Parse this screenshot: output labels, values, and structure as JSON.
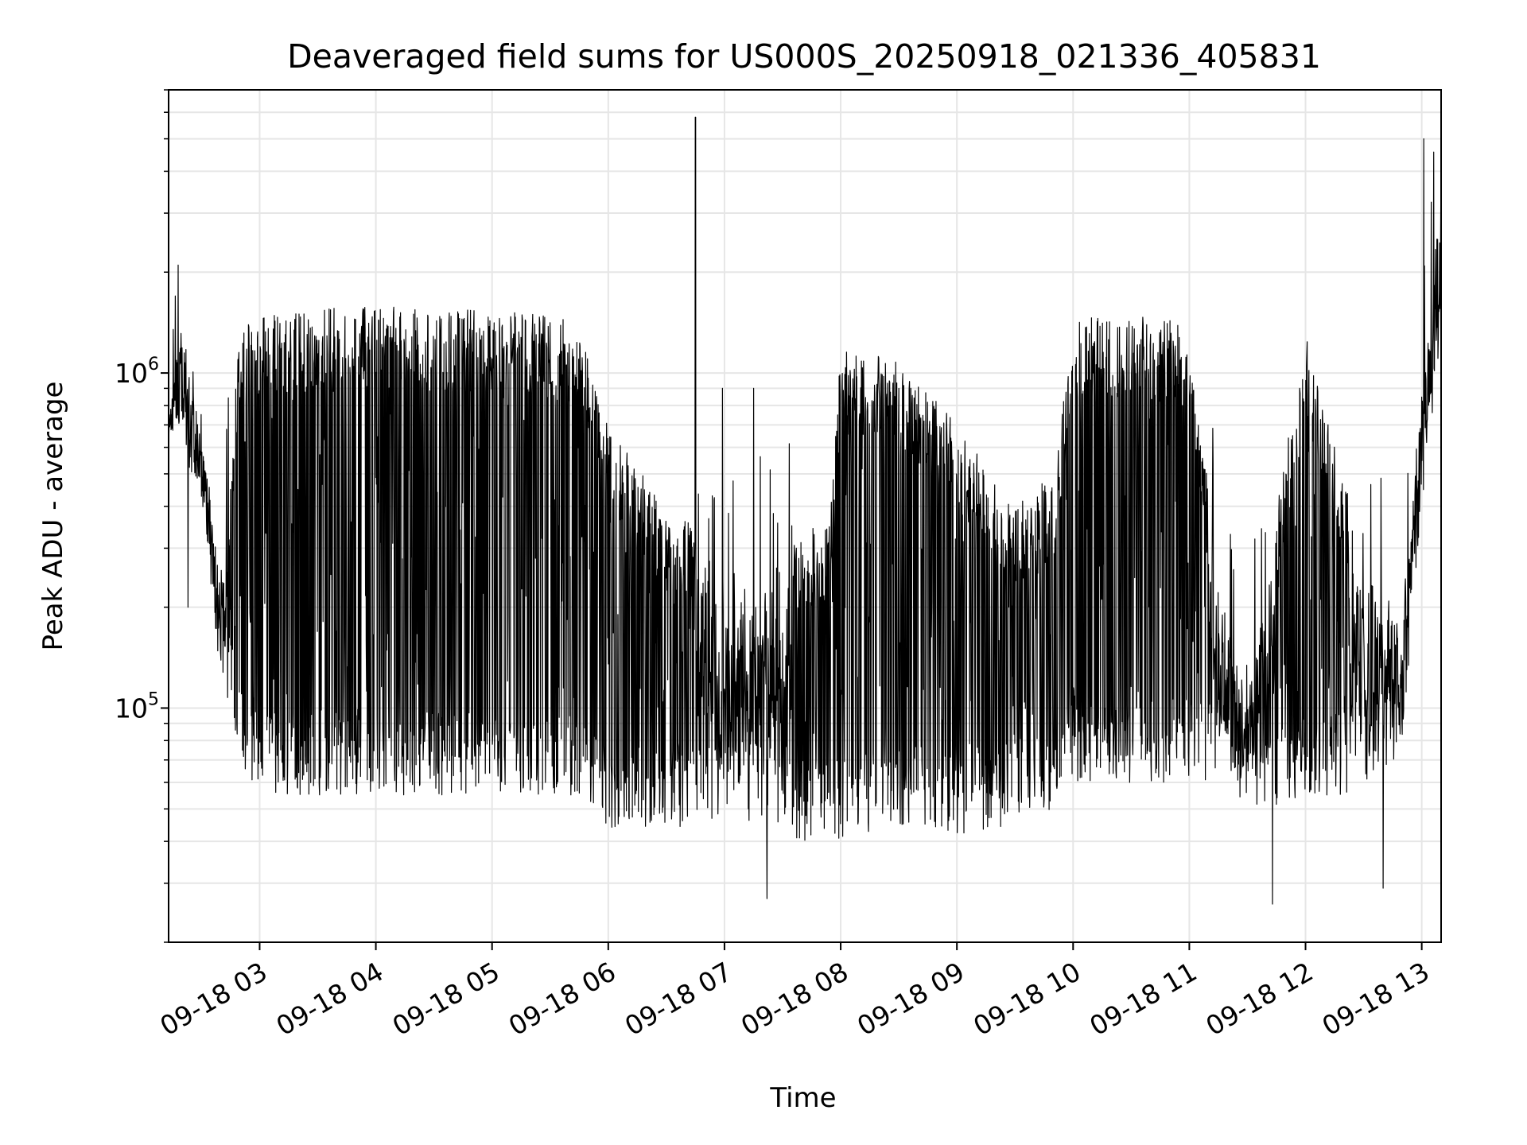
{
  "chart_data": {
    "type": "line",
    "title": "Deaveraged field sums for US000S_20250918_021336_405831",
    "xlabel": "Time",
    "ylabel": "Peak ADU - average",
    "y_scale": "log",
    "ylim": [
      20000,
      7000000
    ],
    "xlim": [
      "2025-09-18 02:13",
      "2025-09-18 13:10"
    ],
    "grid": true,
    "line_color": "#000000",
    "grid_color": "#e6e6e6",
    "x_ticks": [
      {
        "value": "2025-09-18 03:00",
        "label": "09-18 03"
      },
      {
        "value": "2025-09-18 04:00",
        "label": "09-18 04"
      },
      {
        "value": "2025-09-18 05:00",
        "label": "09-18 05"
      },
      {
        "value": "2025-09-18 06:00",
        "label": "09-18 06"
      },
      {
        "value": "2025-09-18 07:00",
        "label": "09-18 07"
      },
      {
        "value": "2025-09-18 08:00",
        "label": "09-18 08"
      },
      {
        "value": "2025-09-18 09:00",
        "label": "09-18 09"
      },
      {
        "value": "2025-09-18 10:00",
        "label": "09-18 10"
      },
      {
        "value": "2025-09-18 11:00",
        "label": "09-18 11"
      },
      {
        "value": "2025-09-18 12:00",
        "label": "09-18 12"
      },
      {
        "value": "2025-09-18 13:00",
        "label": "09-18 13"
      }
    ],
    "y_ticks": [
      {
        "value": 100000,
        "base": "10",
        "exp": "5"
      },
      {
        "value": 1000000,
        "base": "10",
        "exp": "6"
      }
    ],
    "envelope": [
      {
        "t": "2025-09-18 02:13",
        "low": 600000,
        "high": 800000
      },
      {
        "t": "2025-09-18 02:20",
        "low": 550000,
        "high": 1500000
      },
      {
        "t": "2025-09-18 02:30",
        "low": 400000,
        "high": 700000
      },
      {
        "t": "2025-09-18 02:40",
        "low": 120000,
        "high": 250000
      },
      {
        "t": "2025-09-18 02:50",
        "low": 70000,
        "high": 1400000
      },
      {
        "t": "2025-09-18 03:00",
        "low": 55000,
        "high": 1500000
      },
      {
        "t": "2025-09-18 03:30",
        "low": 55000,
        "high": 1550000
      },
      {
        "t": "2025-09-18 04:00",
        "low": 55000,
        "high": 1600000
      },
      {
        "t": "2025-09-18 04:30",
        "low": 55000,
        "high": 1550000
      },
      {
        "t": "2025-09-18 05:00",
        "low": 55000,
        "high": 1550000
      },
      {
        "t": "2025-09-18 05:30",
        "low": 55000,
        "high": 1500000
      },
      {
        "t": "2025-09-18 05:45",
        "low": 55000,
        "high": 1400000
      },
      {
        "t": "2025-09-18 06:00",
        "low": 42000,
        "high": 700000
      },
      {
        "t": "2025-09-18 06:30",
        "low": 45000,
        "high": 400000
      },
      {
        "t": "2025-09-18 07:00",
        "low": 42000,
        "high": 300000
      },
      {
        "t": "2025-09-18 07:30",
        "low": 40000,
        "high": 300000
      },
      {
        "t": "2025-09-18 07:55",
        "low": 40000,
        "high": 400000
      },
      {
        "t": "2025-09-18 08:00",
        "low": 40000,
        "high": 1200000
      },
      {
        "t": "2025-09-18 08:30",
        "low": 45000,
        "high": 1100000
      },
      {
        "t": "2025-09-18 09:00",
        "low": 42000,
        "high": 700000
      },
      {
        "t": "2025-09-18 09:30",
        "low": 45000,
        "high": 400000
      },
      {
        "t": "2025-09-18 09:50",
        "low": 50000,
        "high": 500000
      },
      {
        "t": "2025-09-18 10:00",
        "low": 60000,
        "high": 1450000
      },
      {
        "t": "2025-09-18 10:30",
        "low": 60000,
        "high": 1500000
      },
      {
        "t": "2025-09-18 11:00",
        "low": 60000,
        "high": 1400000
      },
      {
        "t": "2025-09-18 11:15",
        "low": 55000,
        "high": 250000
      },
      {
        "t": "2025-09-18 11:30",
        "low": 45000,
        "high": 120000
      },
      {
        "t": "2025-09-18 12:00",
        "low": 55000,
        "high": 1300000
      },
      {
        "t": "2025-09-18 12:30",
        "low": 55000,
        "high": 300000
      },
      {
        "t": "2025-09-18 12:50",
        "low": 70000,
        "high": 200000
      },
      {
        "t": "2025-09-18 13:00",
        "low": 350000,
        "high": 1000000
      },
      {
        "t": "2025-09-18 13:10",
        "low": 1200000,
        "high": 4000000
      }
    ],
    "spikes": [
      {
        "t": "2025-09-18 02:18",
        "value": 2100000
      },
      {
        "t": "2025-09-18 02:23",
        "value": 200000
      },
      {
        "t": "2025-09-18 06:45",
        "value": 5800000
      },
      {
        "t": "2025-09-18 06:59",
        "value": 900000
      },
      {
        "t": "2025-09-18 07:15",
        "value": 900000
      },
      {
        "t": "2025-09-18 07:22",
        "value": 27000
      },
      {
        "t": "2025-09-18 11:43",
        "value": 26000
      },
      {
        "t": "2025-09-18 12:40",
        "value": 29000
      },
      {
        "t": "2025-09-18 13:01",
        "value": 5000000
      }
    ]
  }
}
